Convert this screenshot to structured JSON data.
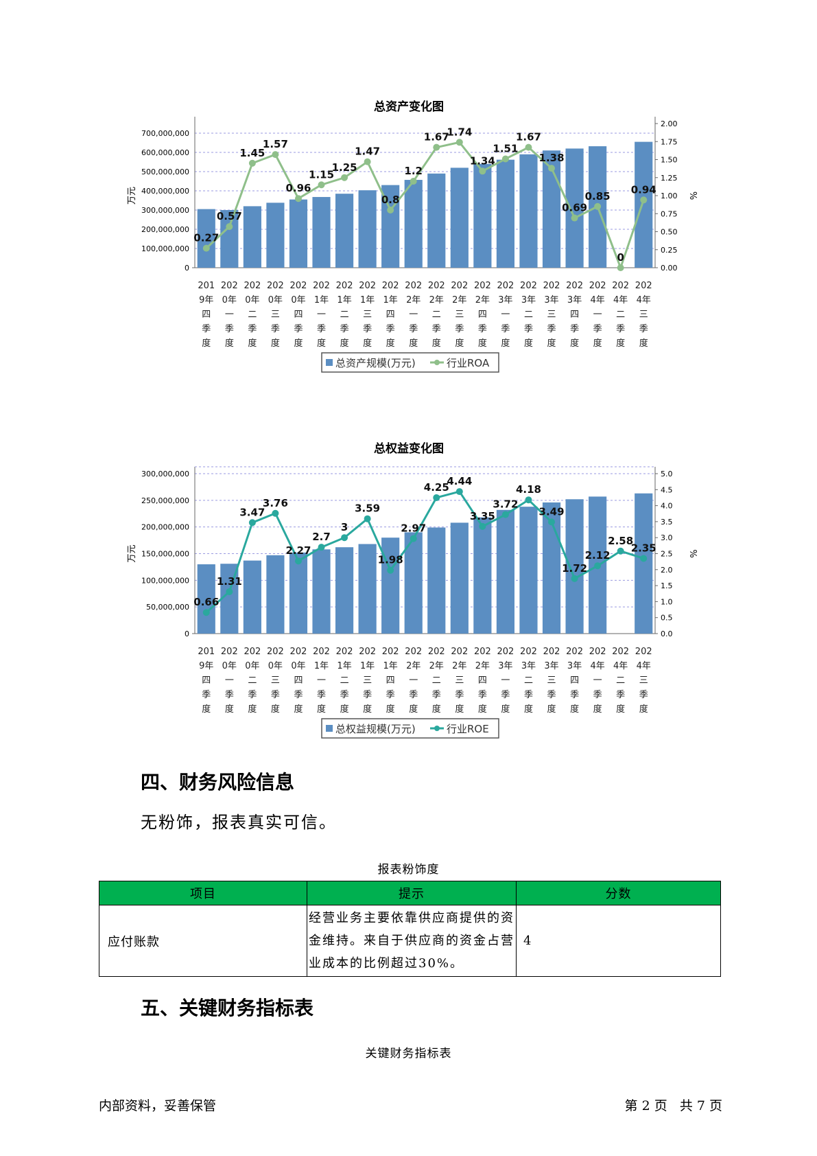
{
  "charts": [
    {
      "id": "assets",
      "title": "总资产变化图",
      "left_axis_label": "万元",
      "right_axis_label": "%",
      "left_ticks": [
        "0",
        "100,000,000",
        "200,000,000",
        "300,000,000",
        "400,000,000",
        "500,000,000",
        "600,000,000",
        "700,000,000"
      ],
      "right_ticks": [
        "0.00",
        "0.25",
        "0.50",
        "0.75",
        "1.00",
        "1.25",
        "1.50",
        "1.75",
        "2.00"
      ],
      "legend": {
        "bar": "总资产规模(万元)",
        "line": "行业ROA"
      },
      "bar_color": "#5b8ec2",
      "line_color": "#8fbf8a"
    },
    {
      "id": "equity",
      "title": "总权益变化图",
      "left_axis_label": "万元",
      "right_axis_label": "%",
      "left_ticks": [
        "0",
        "50,000,000",
        "100,000,000",
        "150,000,000",
        "200,000,000",
        "250,000,000",
        "300,000,000"
      ],
      "right_ticks": [
        "0.0",
        "0.5",
        "1.0",
        "1.5",
        "2.0",
        "2.5",
        "3.0",
        "3.5",
        "4.0",
        "4.5",
        "5.0"
      ],
      "legend": {
        "bar": "总权益规模(万元)",
        "line": "行业ROE"
      },
      "bar_color": "#5b8ec2",
      "line_color": "#2aa89e"
    }
  ],
  "chart_data": [
    {
      "type": "bar",
      "title": "总资产变化图",
      "categories": [
        "2019年四季度",
        "2020年一季度",
        "2020年二季度",
        "2020年三季度",
        "2020年四季度",
        "2021年一季度",
        "2021年二季度",
        "2021年三季度",
        "2021年四季度",
        "2022年一季度",
        "2022年二季度",
        "2022年三季度",
        "2022年四季度",
        "2023年一季度",
        "2023年二季度",
        "2023年三季度",
        "2023年四季度",
        "2024年一季度",
        "2024年二季度",
        "2024年三季度"
      ],
      "series": [
        {
          "name": "总资产规模(万元)",
          "kind": "bar",
          "axis": "left",
          "values": [
            305000000,
            300000000,
            320000000,
            338000000,
            355000000,
            368000000,
            385000000,
            403000000,
            430000000,
            457000000,
            490000000,
            520000000,
            540000000,
            562000000,
            590000000,
            610000000,
            620000000,
            632000000,
            null,
            655000000
          ]
        },
        {
          "name": "行业ROA",
          "kind": "line",
          "axis": "right",
          "values": [
            0.27,
            0.57,
            1.45,
            1.57,
            0.96,
            1.15,
            1.25,
            1.47,
            0.8,
            1.2,
            1.67,
            1.74,
            1.34,
            1.51,
            1.67,
            1.38,
            0.69,
            0.85,
            0,
            0.94
          ]
        }
      ],
      "ylabel": "万元",
      "y2label": "%",
      "ylim": [
        0,
        750000000
      ],
      "y2lim": [
        0,
        2.0
      ],
      "grid": true,
      "legend_position": "bottom"
    },
    {
      "type": "bar",
      "title": "总权益变化图",
      "categories": [
        "2019年四季度",
        "2020年一季度",
        "2020年二季度",
        "2020年三季度",
        "2020年四季度",
        "2021年一季度",
        "2021年二季度",
        "2021年三季度",
        "2021年四季度",
        "2022年一季度",
        "2022年二季度",
        "2022年三季度",
        "2022年四季度",
        "2023年一季度",
        "2023年二季度",
        "2023年三季度",
        "2023年四季度",
        "2024年一季度",
        "2024年二季度",
        "2024年三季度"
      ],
      "series": [
        {
          "name": "总权益规模(万元)",
          "kind": "bar",
          "axis": "left",
          "values": [
            130000000,
            131000000,
            137000000,
            147000000,
            152000000,
            158000000,
            162000000,
            168000000,
            180000000,
            190000000,
            199000000,
            208000000,
            218000000,
            232000000,
            238000000,
            246000000,
            252000000,
            257000000,
            null,
            263000000
          ]
        },
        {
          "name": "行业ROE",
          "kind": "line",
          "axis": "right",
          "values": [
            0.66,
            1.31,
            3.47,
            3.76,
            2.27,
            2.7,
            3,
            3.59,
            1.98,
            2.97,
            4.25,
            4.44,
            3.35,
            3.72,
            4.18,
            3.49,
            1.72,
            2.12,
            2.58,
            2.35
          ]
        }
      ],
      "ylabel": "万元",
      "y2label": "%",
      "ylim": [
        0,
        300000000
      ],
      "y2lim": [
        0,
        5.0
      ],
      "grid": true,
      "legend_position": "bottom"
    }
  ],
  "section4": {
    "heading": "四、财务风险信息",
    "paragraph": "无粉饰，报表真实可信。",
    "table_caption": "报表粉饰度",
    "table_headers": [
      "项目",
      "提示",
      "分数"
    ],
    "rows": [
      {
        "item": "应付账款",
        "hint": "经营业务主要依靠供应商提供的资金维持。来自于供应商的资金占营业成本的比例超过30%。",
        "score": "4"
      }
    ],
    "header_color": "#00b050"
  },
  "section5": {
    "heading": "五、关键财务指标表",
    "table_caption": "关键财务指标表"
  },
  "footer": {
    "left": "内部资料，妥善保管",
    "right": "第 2 页   共 7 页"
  }
}
